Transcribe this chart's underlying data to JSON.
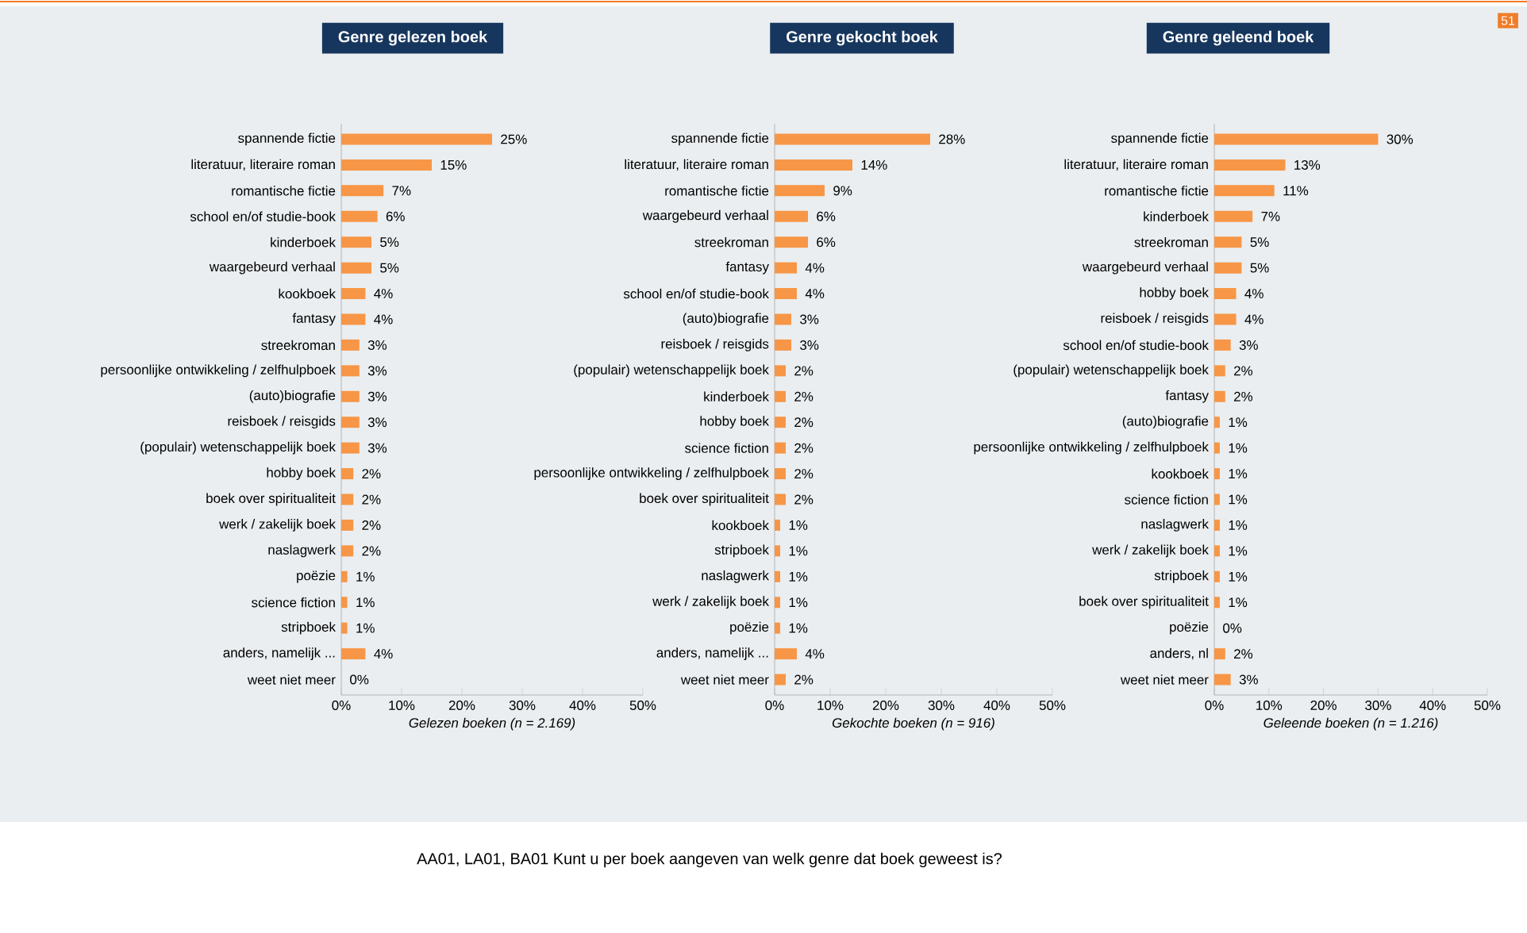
{
  "chart_data": [
    {
      "type": "bar",
      "orientation": "horizontal",
      "title": "Genre gelezen boek",
      "xlabel": "Gelezen boeken (n = 2.169)",
      "color": "#f79646",
      "categories": [
        "spannende fictie",
        "literatuur, literaire roman",
        "romantische fictie",
        "school en/of studie-book",
        "kinderboek",
        "waargebeurd verhaal",
        "kookboek",
        "fantasy",
        "streekroman",
        "persoonlijke ontwikkeling / zelfhulpboek",
        "(auto)biografie",
        "reisboek / reisgids",
        "(populair) wetenschappelijk boek",
        "hobby boek",
        "boek over spiritualiteit",
        "werk / zakelijk boek",
        "naslagwerk",
        "poëzie",
        "science fiction",
        "stripboek",
        "anders, namelijk ...",
        "weet niet meer"
      ],
      "values": [
        25,
        15,
        7,
        6,
        5,
        5,
        4,
        4,
        3,
        3,
        3,
        3,
        3,
        2,
        2,
        2,
        2,
        1,
        1,
        1,
        4,
        0
      ],
      "value_labels": [
        "25%",
        "15%",
        "7%",
        "6%",
        "5%",
        "5%",
        "4%",
        "4%",
        "3%",
        "3%",
        "3%",
        "3%",
        "3%",
        "2%",
        "2%",
        "2%",
        "2%",
        "1%",
        "1%",
        "1%",
        "4%",
        "0%"
      ],
      "xlim": [
        0,
        50
      ],
      "xticks": [
        {
          "value": 0,
          "label": "0%"
        },
        {
          "value": 10,
          "label": "10%"
        },
        {
          "value": 20,
          "label": "20%"
        },
        {
          "value": 30,
          "label": "30%"
        },
        {
          "value": 40,
          "label": "40%"
        },
        {
          "value": 50,
          "label": "50%"
        }
      ],
      "annotations": [
        "AA01, LA01, BA01 Kunt u per boek aangeven van welk genre dat boek geweest is?",
        "51"
      ]
    },
    {
      "type": "bar",
      "orientation": "horizontal",
      "title": "Genre gekocht boek",
      "xlabel": "Gekochte boeken (n = 916)",
      "color": "#f79646",
      "categories": [
        "spannende fictie",
        "literatuur, literaire roman",
        "romantische fictie",
        "waargebeurd verhaal",
        "streekroman",
        "fantasy",
        "school en/of studie-book",
        "(auto)biografie",
        "reisboek / reisgids",
        "(populair) wetenschappelijk boek",
        "kinderboek",
        "hobby boek",
        "science fiction",
        "persoonlijke ontwikkeling / zelfhulpboek",
        "boek over spiritualiteit",
        "kookboek",
        "stripboek",
        "naslagwerk",
        "werk / zakelijk boek",
        "poëzie",
        "anders, namelijk ...",
        "weet niet meer"
      ],
      "values": [
        28,
        14,
        9,
        6,
        6,
        4,
        4,
        3,
        3,
        2,
        2,
        2,
        2,
        2,
        2,
        1,
        1,
        1,
        1,
        1,
        4,
        2
      ],
      "value_labels": [
        "28%",
        "14%",
        "9%",
        "6%",
        "6%",
        "4%",
        "4%",
        "3%",
        "3%",
        "2%",
        "2%",
        "2%",
        "2%",
        "2%",
        "2%",
        "1%",
        "1%",
        "1%",
        "1%",
        "1%",
        "4%",
        "2%"
      ],
      "xlim": [
        0,
        50
      ],
      "xticks": [
        {
          "value": 0,
          "label": "0%"
        },
        {
          "value": 10,
          "label": "10%"
        },
        {
          "value": 20,
          "label": "20%"
        },
        {
          "value": 30,
          "label": "30%"
        },
        {
          "value": 40,
          "label": "40%"
        },
        {
          "value": 50,
          "label": "50%"
        }
      ]
    },
    {
      "type": "bar",
      "orientation": "horizontal",
      "title": "Genre geleend boek",
      "xlabel": "Geleende boeken (n = 1.216)",
      "color": "#f79646",
      "categories": [
        "spannende fictie",
        "literatuur, literaire roman",
        "romantische fictie",
        "kinderboek",
        "streekroman",
        "waargebeurd verhaal",
        "hobby boek",
        "reisboek / reisgids",
        "school en/of studie-book",
        "(populair) wetenschappelijk boek",
        "fantasy",
        "(auto)biografie",
        "persoonlijke ontwikkeling / zelfhulpboek",
        "kookboek",
        "science fiction",
        "naslagwerk",
        "werk / zakelijk boek",
        "stripboek",
        "boek over spiritualiteit",
        "poëzie",
        "anders, nl",
        "weet niet meer"
      ],
      "values": [
        30,
        13,
        11,
        7,
        5,
        5,
        4,
        4,
        3,
        2,
        2,
        1,
        1,
        1,
        1,
        1,
        1,
        1,
        1,
        0,
        2,
        3
      ],
      "value_labels": [
        "30%",
        "13%",
        "11%",
        "7%",
        "5%",
        "5%",
        "4%",
        "4%",
        "3%",
        "2%",
        "2%",
        "1%",
        "1%",
        "1%",
        "1%",
        "1%",
        "1%",
        "1%",
        "1%",
        "0%",
        "2%",
        "3%"
      ],
      "xlim": [
        0,
        50
      ],
      "xticks": [
        {
          "value": 0,
          "label": "0%"
        },
        {
          "value": 10,
          "label": "10%"
        },
        {
          "value": 20,
          "label": "20%"
        },
        {
          "value": 30,
          "label": "30%"
        },
        {
          "value": 40,
          "label": "40%"
        },
        {
          "value": 50,
          "label": "50%"
        }
      ]
    }
  ]
}
